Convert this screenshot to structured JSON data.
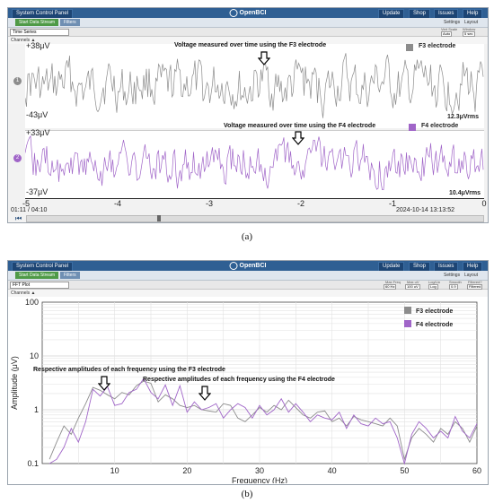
{
  "panel_a": {
    "top_left": "System Control Panel",
    "logo": "OpenBCI",
    "top_right": [
      "Update",
      "Shop",
      "Issues",
      "Help"
    ],
    "start_button": "Start Data Stream",
    "filters_button": "Filters",
    "sub_right": [
      "Settings",
      "Layout"
    ],
    "widget_select": "Time Series",
    "mini_labels": [
      "Vert Scale",
      "Window"
    ],
    "mini_values": [
      "Auto",
      "5 sec"
    ],
    "channels_header": "Channels ▲",
    "ch1": {
      "num": "1",
      "ymax": "+38μV",
      "ymin": "-43μV",
      "annotation": "Voltage measured over time using the F3 electrode",
      "legend": "F3 electrode",
      "vrms": "12.3μVrms",
      "color": "#8c8c8c"
    },
    "ch2": {
      "num": "2",
      "ymax": "+33μV",
      "ymin": "-37μV",
      "annotation": "Voltage measured over time using the F4 electrode",
      "legend": "F4 electrode",
      "vrms": "10.4μVrms",
      "color": "#a065c8"
    },
    "xticks": [
      "-5",
      "-4",
      "-3",
      "-2",
      "-1",
      "0"
    ],
    "time_left": "01:11 / 04:10",
    "time_right": "2024-10-14 13:13:52",
    "caption": "(a)"
  },
  "panel_b": {
    "top_left": "System Control Panel",
    "logo": "OpenBCI",
    "top_right": [
      "Update",
      "Shop",
      "Issues",
      "Help"
    ],
    "start_button": "Start Data Stream",
    "filters_button": "Filters",
    "sub_right": [
      "Settings",
      "Layout"
    ],
    "widget_select": "FFT Plot",
    "mini_labels": [
      "Max Freq",
      "Max uV",
      "Log/Lin",
      "Smooth",
      "Filtered?"
    ],
    "mini_values": [
      "60 Hz",
      "100 uV",
      "Log",
      "0.9",
      "Filtered"
    ],
    "channels_header": "Channels ▲",
    "annotation_f3": "Respective amplitudes of each frequency using the F3 electrode",
    "annotation_f4": "Respective amplitudes of each frequency using the F4 electrode",
    "caption": "(b)"
  },
  "chart_data": {
    "type": "line",
    "xlabel": "Frequency (Hz)",
    "ylabel": "Amplitude (μV)",
    "xlim": [
      0,
      60
    ],
    "ylim": [
      0.1,
      100
    ],
    "yscale": "log",
    "grid": true,
    "legend_position": "top-right",
    "x_ticks": [
      "10",
      "20",
      "30",
      "40",
      "50",
      "60"
    ],
    "y_ticks": [
      "0.1",
      "1",
      "10",
      "100"
    ],
    "x": [
      1,
      2,
      3,
      4,
      5,
      6,
      7,
      8,
      9,
      10,
      11,
      12,
      13,
      14,
      15,
      16,
      17,
      18,
      19,
      20,
      21,
      22,
      23,
      24,
      25,
      26,
      27,
      28,
      29,
      30,
      31,
      32,
      33,
      34,
      35,
      36,
      37,
      38,
      39,
      40,
      41,
      42,
      43,
      44,
      45,
      46,
      47,
      48,
      49,
      50,
      51,
      52,
      53,
      54,
      55,
      56,
      57,
      58,
      59,
      60
    ],
    "series": [
      {
        "name": "F3 electrode",
        "color": "#8c8c8c",
        "values": [
          0.12,
          0.25,
          0.5,
          0.35,
          0.7,
          1.3,
          2.6,
          2.3,
          1.9,
          1.6,
          2.1,
          1.9,
          2.8,
          3.4,
          3.1,
          1.4,
          1.9,
          1.6,
          1.2,
          1.1,
          1.2,
          1.0,
          0.95,
          0.9,
          1.3,
          1.2,
          0.7,
          0.6,
          0.8,
          1.1,
          0.9,
          1.2,
          1.0,
          1.5,
          1.1,
          0.8,
          0.7,
          0.9,
          0.95,
          0.6,
          0.7,
          0.5,
          0.75,
          0.65,
          0.6,
          0.55,
          0.5,
          0.7,
          0.5,
          0.12,
          0.3,
          0.45,
          0.35,
          0.25,
          0.45,
          0.35,
          0.6,
          0.45,
          0.25,
          0.5
        ]
      },
      {
        "name": "F4 electrode",
        "color": "#a065c8",
        "values": [
          0.1,
          0.12,
          0.2,
          0.45,
          0.25,
          0.6,
          2.4,
          1.8,
          2.7,
          1.2,
          1.3,
          2.1,
          2.4,
          3.8,
          2.1,
          1.6,
          2.9,
          1.2,
          2.8,
          0.9,
          1.4,
          1.0,
          1.1,
          1.3,
          0.7,
          1.0,
          1.3,
          1.1,
          0.7,
          1.2,
          0.8,
          1.0,
          1.6,
          0.9,
          1.3,
          0.9,
          0.6,
          0.8,
          0.7,
          0.65,
          0.9,
          0.45,
          0.8,
          0.55,
          0.5,
          0.7,
          0.55,
          0.6,
          0.3,
          0.1,
          0.35,
          0.6,
          0.45,
          0.3,
          0.4,
          0.3,
          0.75,
          0.4,
          0.3,
          0.55
        ]
      }
    ]
  }
}
